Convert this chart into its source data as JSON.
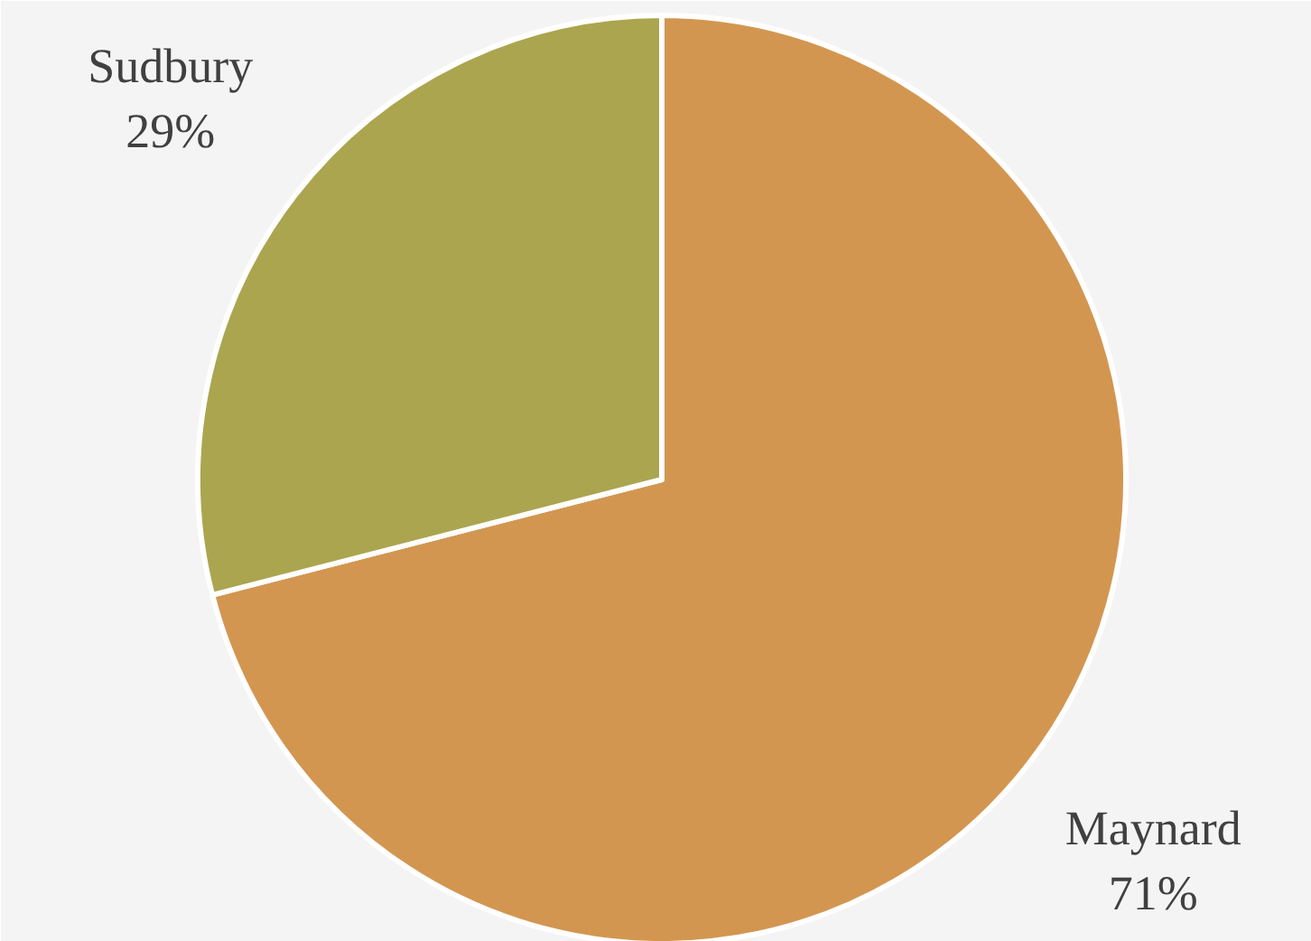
{
  "chart_data": {
    "type": "pie",
    "categories": [
      "Maynard",
      "Sudbury"
    ],
    "values": [
      71,
      29
    ],
    "colors": [
      "#d39651",
      "#aba54f"
    ],
    "value_labels": [
      "71%",
      "29%"
    ]
  }
}
